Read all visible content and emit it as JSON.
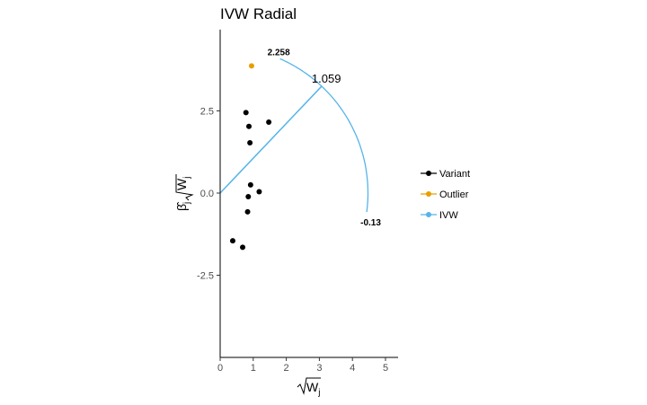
{
  "chart_data": {
    "type": "scatter",
    "title": "IVW Radial",
    "xlabel": "√W_j",
    "ylabel": "β̂_j√W_j",
    "xlim": [
      0,
      5.4
    ],
    "ylim": [
      -5,
      5
    ],
    "x_ticks": [
      0,
      1,
      2,
      3,
      4,
      5
    ],
    "y_ticks": [
      -2.5,
      0.0,
      2.5
    ],
    "y_tick_labels": [
      "-2.5",
      "0.0",
      "2.5"
    ],
    "grid": false,
    "legend_position": "right",
    "series": [
      {
        "name": "Variant",
        "color": "#000000",
        "points": [
          {
            "x": 0.78,
            "y": 2.45
          },
          {
            "x": 0.87,
            "y": 2.03
          },
          {
            "x": 1.47,
            "y": 2.16
          },
          {
            "x": 0.9,
            "y": 1.53
          },
          {
            "x": 0.92,
            "y": 0.25
          },
          {
            "x": 1.18,
            "y": 0.04
          },
          {
            "x": 0.85,
            "y": -0.11
          },
          {
            "x": 0.83,
            "y": -0.57
          },
          {
            "x": 0.38,
            "y": -1.45
          },
          {
            "x": 0.68,
            "y": -1.65
          }
        ]
      },
      {
        "name": "Outlier",
        "color": "#E69F00",
        "points": [
          {
            "x": 0.95,
            "y": 3.87
          }
        ]
      }
    ],
    "ivw": {
      "name": "IVW",
      "color": "#56B4E9",
      "estimate_label": "1.059",
      "upper_label": "2.258",
      "lower_label": "-0.13"
    },
    "legend": [
      {
        "label": "Variant",
        "color": "#000000"
      },
      {
        "label": "Outlier",
        "color": "#E69F00"
      },
      {
        "label": "IVW",
        "color": "#56B4E9"
      }
    ]
  }
}
